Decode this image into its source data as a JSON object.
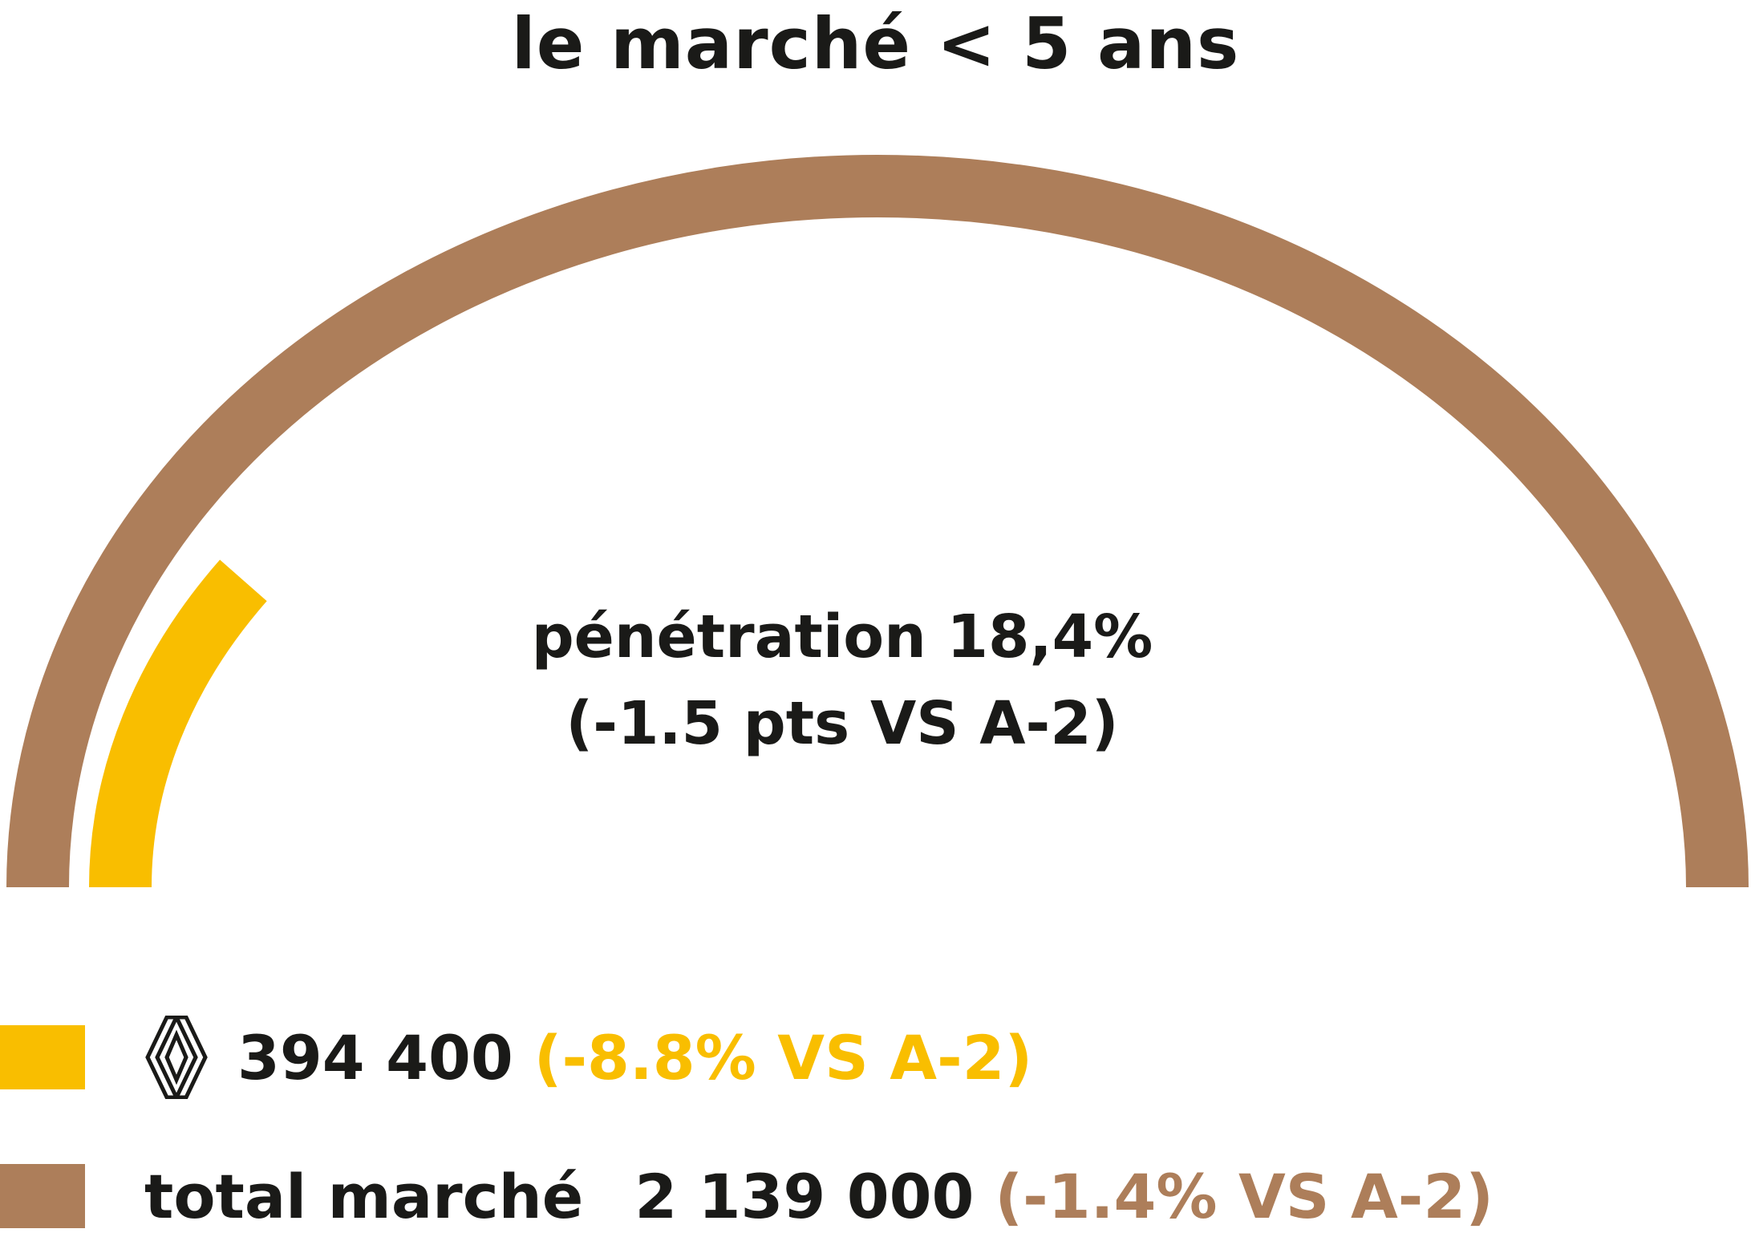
{
  "chart_data": {
    "type": "gauge",
    "title": "le marché < 5 ans",
    "penetration_label": "pénétration 18,4%",
    "penetration_change": "(-1.5 pts VS A-2)",
    "penetration": 0.184,
    "series": [
      {
        "name_icon": "renault-logo-icon",
        "value_text": "394 400",
        "change_text": "(-8.8% VS A-2)",
        "value": 394400,
        "change_pct": -8.8,
        "color": "#f9be00"
      },
      {
        "name": "total marché",
        "value_text": "2 139 000",
        "change_text": "(-1.4% VS A-2)",
        "value": 2139000,
        "change_pct": -1.4,
        "color": "#ad7e5a"
      }
    ]
  },
  "colors": {
    "renault": "#f9be00",
    "market": "#ad7e5a",
    "text": "#1a1a18"
  }
}
